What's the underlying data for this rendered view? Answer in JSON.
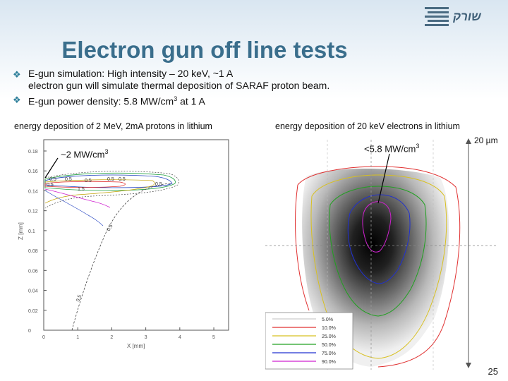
{
  "slide": {
    "title": "Electron gun off line tests",
    "logo_text": "שורק",
    "page_number": "25",
    "bullets": [
      {
        "line1": "E-gun simulation: High intensity – 20 keV, ~1 A",
        "line2": "electron gun will simulate thermal deposition of SARAF proton beam."
      },
      {
        "text_before": "E-gun power density: 5.8 MW/cm",
        "sup": "3",
        "text_after": " at 1 A"
      }
    ],
    "bullet_icon": "diamond-bullet-icon"
  },
  "left_figure": {
    "caption": "energy deposition of 2 MeV, 2mA protons in lithium",
    "annotation_prefix": "~2 MW/cm",
    "annotation_sup": "3",
    "y_axis_label": "Z [mm]",
    "x_axis_label": "X [mm]",
    "y_ticks": [
      "0.18",
      "0.16",
      "0.14",
      "0.12",
      "0.1",
      "0.08",
      "0.06",
      "0.04",
      "0.02",
      "0"
    ],
    "x_ticks": [
      "0",
      "1",
      "2",
      "3",
      "4",
      "5"
    ],
    "contour_labels": [
      "0.5",
      "0.5",
      "0.5",
      "0.5",
      "0.5",
      "0.5",
      "1.5",
      "0.5",
      "0.5",
      "0.5"
    ]
  },
  "right_figure": {
    "caption": "energy deposition of 20 keV electrons in lithium",
    "annotation_prefix": "<5.8 MW/cm",
    "annotation_sup": "3",
    "scale_label": "20 µm",
    "legend": [
      {
        "label": "5.0%",
        "color": "#ffffff"
      },
      {
        "label": "10.0%",
        "color": "#e03030"
      },
      {
        "label": "25.0%",
        "color": "#d8c020"
      },
      {
        "label": "50.0%",
        "color": "#20a020"
      },
      {
        "label": "75.0%",
        "color": "#2030d0"
      },
      {
        "label": "90.0%",
        "color": "#d020d0"
      }
    ]
  }
}
